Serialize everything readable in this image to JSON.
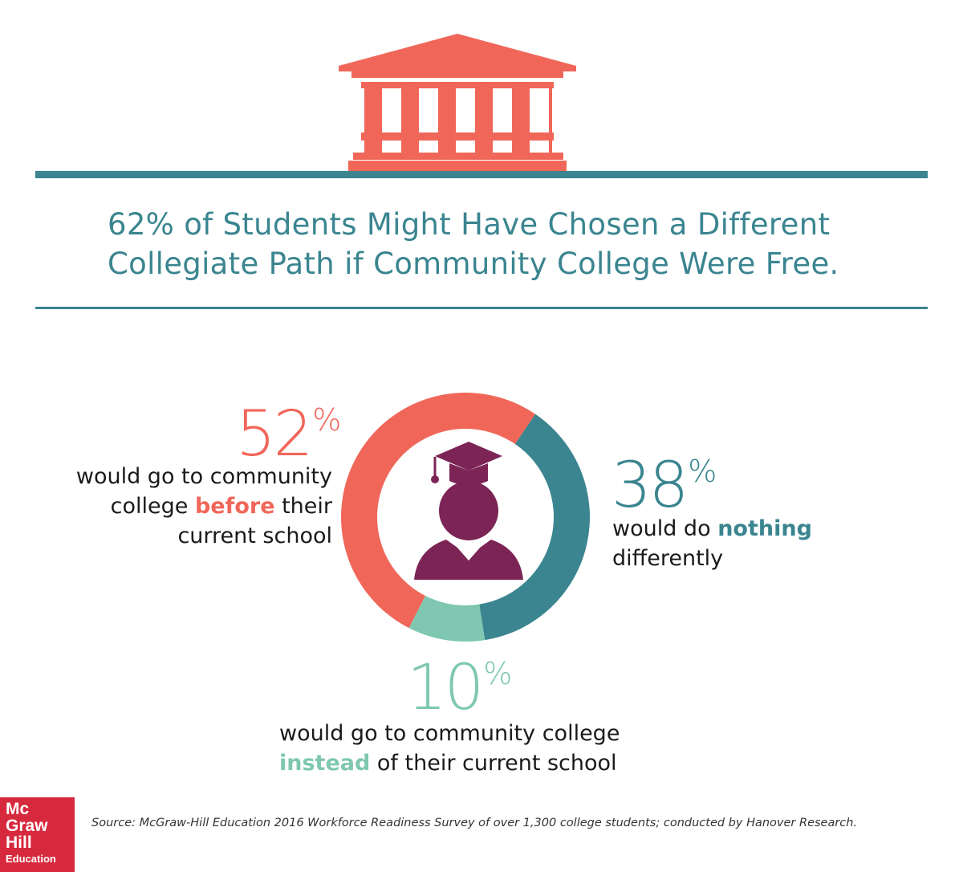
{
  "colors": {
    "coral": "#f0675a",
    "teal": "#3a8590",
    "mint": "#7fc7b1",
    "plum": "#7b2455",
    "logo_red": "#d6293d"
  },
  "header": {
    "icon": "building-columns-icon",
    "title_line1": "62% of Students Might Have Chosen a Different",
    "title_line2": "Collegiate Path if Community College Were Free."
  },
  "chart_data": {
    "type": "pie",
    "style": "donut",
    "center_icon": "graduate-icon",
    "slices": [
      {
        "key": "before",
        "value": 52,
        "color": "#f0675a"
      },
      {
        "key": "nothing",
        "value": 38,
        "color": "#3a8590"
      },
      {
        "key": "instead",
        "value": 10,
        "color": "#7fc7b1"
      }
    ]
  },
  "labels": {
    "before": {
      "value": "52",
      "symbol": "%",
      "line1": "would go to community",
      "line2_pre": "college ",
      "line2_bold": "before",
      "line2_post": " their",
      "line3": "current school"
    },
    "nothing": {
      "value": "38",
      "symbol": "%",
      "line1_pre": "would do ",
      "line1_bold": "nothing",
      "line2": "differently"
    },
    "instead": {
      "value": "10",
      "symbol": "%",
      "line1": "would go to community college",
      "line2_bold": "instead",
      "line2_post": " of their current school"
    }
  },
  "footer": {
    "source": "Source: McGraw-Hill Education 2016 Workforce Readiness Survey of over 1,300 college students; conducted by Hanover Research.",
    "logo_line1": "Mc",
    "logo_line2": "Graw",
    "logo_line3": "Hill",
    "logo_line4": "Education"
  }
}
